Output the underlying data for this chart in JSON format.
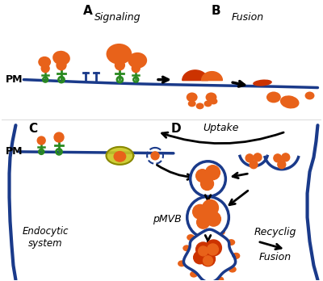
{
  "bg_color": "#ffffff",
  "orange": "#E8621A",
  "dark_orange": "#CC3300",
  "green": "#2a8a20",
  "blue": "#1a3a8a",
  "yellow": "#c8c820",
  "label_A": "A",
  "label_B": "B",
  "label_C": "C",
  "label_D": "D",
  "text_signaling": "Signaling",
  "text_fusion": "Fusion",
  "text_uptake": "Uptake",
  "text_PM": "PM",
  "text_endocytic": "Endocytic\nsystem",
  "text_pMVB": "pMVB",
  "text_recyclig": "Recyclig",
  "text_fusion2": "Fusion"
}
